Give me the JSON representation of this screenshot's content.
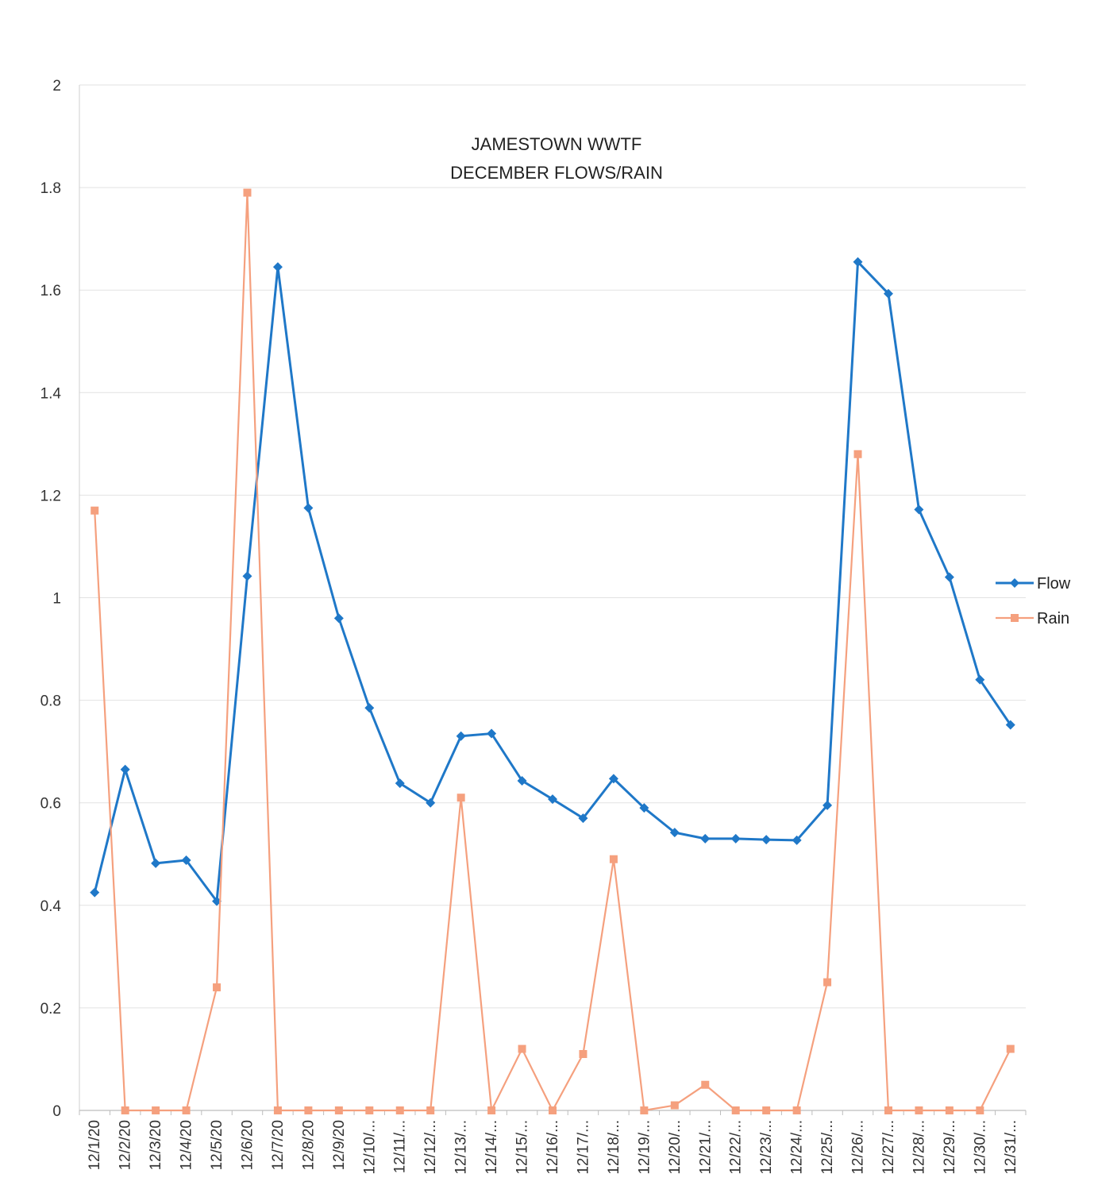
{
  "chart_data": {
    "type": "line",
    "title_lines": [
      "JAMESTOWN WWTF",
      "DECEMBER FLOWS/RAIN"
    ],
    "xlabel": "",
    "ylabel": "",
    "ylim": [
      0,
      2
    ],
    "y_ticks": [
      0,
      0.2,
      0.4,
      0.6,
      0.8,
      1,
      1.2,
      1.4,
      1.6,
      1.8,
      2
    ],
    "y_tick_labels": [
      "0",
      "0.2",
      "0.4",
      "0.6",
      "0.8",
      "1",
      "1.2",
      "1.4",
      "1.6",
      "1.8",
      "2"
    ],
    "categories": [
      "12/1/20",
      "12/2/20",
      "12/3/20",
      "12/4/20",
      "12/5/20",
      "12/6/20",
      "12/7/20",
      "12/8/20",
      "12/9/20",
      "12/10/...",
      "12/11/...",
      "12/12/...",
      "12/13/...",
      "12/14/...",
      "12/15/...",
      "12/16/...",
      "12/17/...",
      "12/18/...",
      "12/19/...",
      "12/20/...",
      "12/21/...",
      "12/22/...",
      "12/23/...",
      "12/24/...",
      "12/25/...",
      "12/26/...",
      "12/27/...",
      "12/28/...",
      "12/29/...",
      "12/30/...",
      "12/31/..."
    ],
    "series": [
      {
        "name": "Flow",
        "color": "#1f78c8",
        "marker": "diamond",
        "values": [
          0.425,
          0.665,
          0.482,
          0.488,
          0.408,
          1.042,
          1.645,
          1.175,
          0.96,
          0.785,
          0.638,
          0.6,
          0.73,
          0.735,
          0.643,
          0.607,
          0.57,
          0.647,
          0.59,
          0.542,
          0.53,
          0.53,
          0.528,
          0.527,
          0.595,
          1.655,
          1.593,
          1.172,
          1.04,
          0.84,
          0.752
        ]
      },
      {
        "name": "Rain",
        "color": "#f5a07e",
        "marker": "square",
        "values": [
          1.17,
          0,
          0,
          0,
          0.24,
          1.79,
          0,
          0,
          0,
          0,
          0,
          0,
          0.61,
          0,
          0.12,
          0,
          0.11,
          0.49,
          0,
          0.01,
          0.05,
          0,
          0,
          0,
          0.25,
          1.28,
          0,
          0,
          0,
          0,
          0.12
        ]
      }
    ],
    "grid": true,
    "legend_position": "right"
  }
}
